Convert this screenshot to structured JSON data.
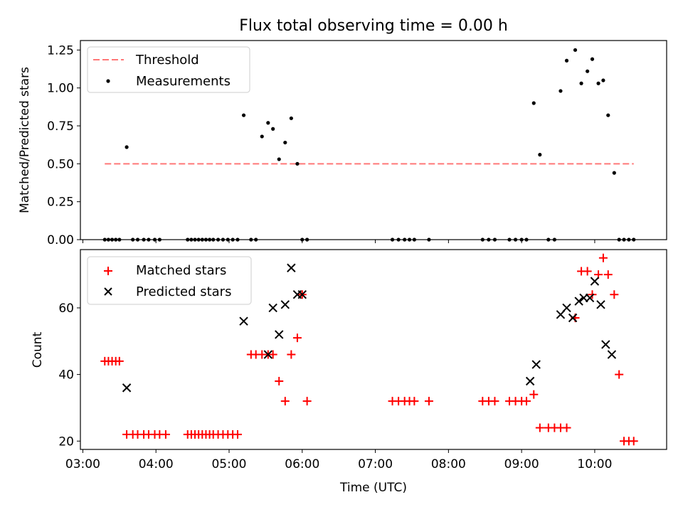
{
  "title": "Flux total observing time = 0.00 h",
  "chart_data": [
    {
      "type": "scatter",
      "ylabel": "Matched/Predicted stars",
      "ylim": [
        0,
        1.3125
      ],
      "yticks": [
        0,
        0.25,
        0.5,
        0.75,
        1.0,
        1.25
      ],
      "ytick_labels": [
        "0.00",
        "0.25",
        "0.50",
        "0.75",
        "1.00",
        "1.25"
      ],
      "grid": false,
      "legend_position": "top-left",
      "threshold": {
        "name": "Threshold",
        "value": 0.5,
        "x_range": [
          "03:18",
          "10:32"
        ],
        "color": "#ff7777",
        "style": "dashed"
      },
      "series": [
        {
          "name": "Measurements",
          "color": "#000000",
          "marker": "dot",
          "x": [
            "03:18",
            "03:21",
            "03:24",
            "03:27",
            "03:30",
            "03:36",
            "03:41",
            "03:45",
            "03:50",
            "03:54",
            "03:59",
            "04:03",
            "04:26",
            "04:29",
            "04:32",
            "04:35",
            "04:38",
            "04:41",
            "04:44",
            "04:47",
            "04:51",
            "04:55",
            "04:59",
            "05:03",
            "05:07",
            "05:12",
            "05:18",
            "05:22",
            "05:27",
            "05:32",
            "05:36",
            "05:41",
            "05:46",
            "05:51",
            "05:56",
            "06:00",
            "06:04",
            "07:14",
            "07:19",
            "07:24",
            "07:28",
            "07:32",
            "07:44",
            "08:28",
            "08:33",
            "08:38",
            "08:50",
            "08:55",
            "09:00",
            "09:04",
            "09:10",
            "09:15",
            "09:22",
            "09:27",
            "09:32",
            "09:37",
            "09:44",
            "09:49",
            "09:54",
            "09:58",
            "10:03",
            "10:07",
            "10:11",
            "10:16",
            "10:20",
            "10:24",
            "10:28",
            "10:32"
          ],
          "y": [
            0,
            0,
            0,
            0,
            0,
            0.61,
            0,
            0,
            0,
            0,
            0,
            0,
            0,
            0,
            0,
            0,
            0,
            0,
            0,
            0,
            0,
            0,
            0,
            0,
            0,
            0.82,
            0,
            0,
            0.68,
            0.77,
            0.73,
            0.53,
            0.64,
            0.8,
            0.5,
            0,
            0,
            0,
            0,
            0,
            0,
            0,
            0,
            0,
            0,
            0,
            0,
            0,
            0,
            0,
            0.9,
            0.56,
            0,
            0,
            0.98,
            1.18,
            1.25,
            1.03,
            1.11,
            1.19,
            1.03,
            1.05,
            0.82,
            0.44,
            0,
            0,
            0,
            0
          ]
        }
      ]
    },
    {
      "type": "scatter",
      "xlabel": "Time (UTC)",
      "ylabel": "Count",
      "ylim": [
        17.5,
        77.5
      ],
      "yticks": [
        20,
        40,
        60
      ],
      "ytick_labels": [
        "20",
        "40",
        "60"
      ],
      "xlim": [
        "02:58",
        "10:59"
      ],
      "xticks": [
        "03:00",
        "04:00",
        "05:00",
        "06:00",
        "07:00",
        "08:00",
        "09:00",
        "10:00"
      ],
      "grid": false,
      "legend_position": "top-left",
      "series": [
        {
          "name": "Matched stars",
          "color": "#ff0000",
          "marker": "plus",
          "x": [
            "03:18",
            "03:21",
            "03:24",
            "03:27",
            "03:30",
            "03:36",
            "03:41",
            "03:45",
            "03:50",
            "03:54",
            "03:59",
            "04:03",
            "04:08",
            "04:26",
            "04:29",
            "04:32",
            "04:35",
            "04:38",
            "04:41",
            "04:44",
            "04:47",
            "04:51",
            "04:55",
            "04:59",
            "05:03",
            "05:07",
            "05:18",
            "05:22",
            "05:27",
            "05:32",
            "05:36",
            "05:41",
            "05:46",
            "05:51",
            "05:56",
            "06:00",
            "06:04",
            "07:14",
            "07:19",
            "07:24",
            "07:28",
            "07:32",
            "07:44",
            "08:28",
            "08:33",
            "08:38",
            "08:50",
            "08:55",
            "09:00",
            "09:04",
            "09:10",
            "09:15",
            "09:22",
            "09:27",
            "09:32",
            "09:37",
            "09:44",
            "09:49",
            "09:54",
            "09:58",
            "10:03",
            "10:07",
            "10:11",
            "10:16",
            "10:20",
            "10:24",
            "10:28",
            "10:32"
          ],
          "y": [
            44,
            44,
            44,
            44,
            44,
            22,
            22,
            22,
            22,
            22,
            22,
            22,
            22,
            22,
            22,
            22,
            22,
            22,
            22,
            22,
            22,
            22,
            22,
            22,
            22,
            22,
            46,
            46,
            46,
            46,
            46,
            38,
            32,
            46,
            51,
            64,
            32,
            32,
            32,
            32,
            32,
            32,
            32,
            32,
            32,
            32,
            32,
            32,
            32,
            32,
            34,
            24,
            24,
            24,
            24,
            24,
            57,
            71,
            71,
            64,
            70,
            75,
            70,
            64,
            40,
            20,
            20,
            20
          ]
        },
        {
          "name": "Predicted stars",
          "color": "#000000",
          "marker": "x",
          "x": [
            "03:36",
            "05:12",
            "05:32",
            "05:36",
            "05:41",
            "05:46",
            "05:51",
            "05:56",
            "06:00",
            "09:07",
            "09:12",
            "09:32",
            "09:37",
            "09:42",
            "09:47",
            "09:51",
            "09:56",
            "10:00",
            "10:05",
            "10:09",
            "10:14"
          ],
          "y": [
            36,
            56,
            46,
            60,
            52,
            61,
            72,
            64,
            64,
            38,
            43,
            58,
            60,
            57,
            62,
            63,
            63,
            68,
            61,
            49,
            46
          ]
        }
      ]
    }
  ]
}
